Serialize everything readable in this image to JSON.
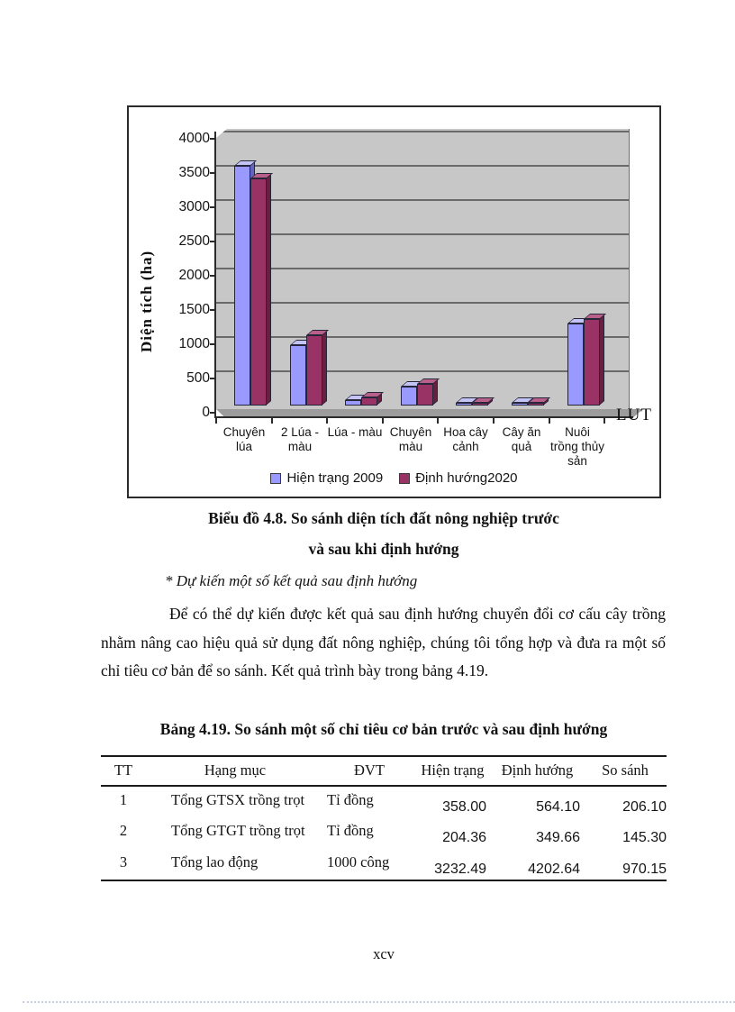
{
  "document": {
    "chart_caption_line1": "Biểu đồ 4.8. So sánh diện tích đất nông nghiệp trước",
    "chart_caption_line2": "và sau khi định hướng",
    "note": "* Dự kiến một số kết quả sau định hướng",
    "paragraph": "Để có thể dự kiến được kết quả sau định hướng chuyển đổi cơ cấu cây trồng nhằm nâng cao hiệu quả sử dụng đất nông nghiệp, chúng tôi tổng hợp và đưa ra một số chỉ tiêu cơ bản để so sánh. Kết quả trình bày trong bảng 4.19.",
    "table_caption": "Bảng 4.19. So sánh một số chỉ tiêu cơ bản trước và sau định hướng",
    "page_number": "xcv"
  },
  "chart_data": {
    "type": "bar",
    "title": "Biểu đồ 4.8. So sánh diện tích đất nông nghiệp trước và sau khi định hướng",
    "xlabel": "LUT",
    "ylabel": "Diện tích (ha)",
    "ylim": [
      0,
      4000
    ],
    "ytick_step": 500,
    "yticks": [
      "4000",
      "3500",
      "3000",
      "2500",
      "2000",
      "1500",
      "1000",
      "500",
      "0"
    ],
    "grid": true,
    "legend_position": "bottom",
    "style": "3d-bar",
    "categories": [
      "Chuyên lúa",
      "2 Lúa - màu",
      "Lúa - màu",
      "Chuyên màu",
      "Hoa cây cảnh",
      "Cây ăn quả",
      "Nuôi trồng thủy sản"
    ],
    "series": [
      {
        "name": "Hiện trạng 2009",
        "values": [
          3500,
          880,
          80,
          280,
          25,
          25,
          1200
        ],
        "color": "#9999fe",
        "top_color": "#c3c3f6",
        "side_color": "#6363c0"
      },
      {
        "name": "Định hướng2020",
        "values": [
          3320,
          1030,
          120,
          320,
          35,
          35,
          1260
        ],
        "color": "#993366",
        "top_color": "#b8608a",
        "side_color": "#66213f"
      }
    ]
  },
  "table": {
    "headers": [
      "TT",
      "Hạng mục",
      "ĐVT",
      "Hiện trạng",
      "Định hướng",
      "So sánh"
    ],
    "rows": [
      [
        "1",
        "Tổng GTSX trồng trọt",
        "Tỉ đồng",
        "358.00",
        "564.10",
        "206.10"
      ],
      [
        "2",
        "Tổng GTGT trồng trọt",
        "Tỉ đồng",
        "204.36",
        "349.66",
        "145.30"
      ],
      [
        "3",
        "Tổng lao động",
        "1000 công",
        "3232.49",
        "4202.64",
        "970.15"
      ]
    ]
  },
  "colors": {
    "plot_wall": "#c7c7c7",
    "plot_floor": "#9c9c9c",
    "gridline": "#6a6a6a",
    "axis": "#2b2b2b",
    "bottom_dotted_line": "#c5cfe0"
  }
}
